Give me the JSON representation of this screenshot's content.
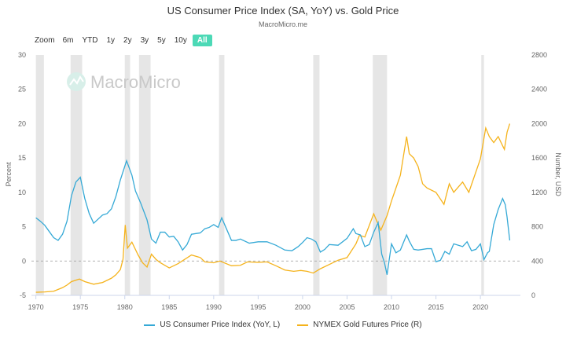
{
  "header": {
    "title": "US Consumer Price Index (SA, YoY) vs. Gold Price",
    "subtitle": "MacroMicro.me"
  },
  "zoom": {
    "label": "Zoom",
    "buttons": [
      "6m",
      "YTD",
      "1y",
      "2y",
      "3y",
      "5y",
      "10y",
      "All"
    ],
    "active": "All"
  },
  "watermark": {
    "text": "MacroMicro"
  },
  "colors": {
    "cpi": "#35a9d6",
    "gold": "#f5b31c",
    "recession": "#e6e6e6",
    "active_button": "#4cd9b6"
  },
  "chart_data": {
    "type": "line",
    "x_range": [
      1969.5,
      2024.5
    ],
    "x_ticks": [
      1970,
      1975,
      1980,
      1985,
      1990,
      1995,
      2000,
      2005,
      2010,
      2015,
      2020
    ],
    "y_left": {
      "label": "Percent",
      "range": [
        -5,
        30
      ],
      "ticks": [
        -5,
        0,
        5,
        10,
        15,
        20,
        25,
        30
      ]
    },
    "y_right": {
      "label": "Number, USD",
      "range": [
        0,
        2800
      ],
      "ticks": [
        0,
        400,
        800,
        1200,
        1600,
        2000,
        2400,
        2800
      ]
    },
    "recessions": [
      [
        1970.0,
        1970.9
      ],
      [
        1973.9,
        1975.2
      ],
      [
        1980.0,
        1980.6
      ],
      [
        1981.6,
        1982.9
      ],
      [
        1990.6,
        1991.2
      ],
      [
        2001.2,
        2001.9
      ],
      [
        2007.9,
        2009.5
      ],
      [
        2020.1,
        2020.4
      ]
    ],
    "zero_line": 0,
    "series": [
      {
        "name": "US Consumer Price Index (YoY, L)",
        "axis": "left",
        "x": [
          1970.0,
          1970.5,
          1971.0,
          1971.5,
          1972.0,
          1972.5,
          1973.0,
          1973.5,
          1974.0,
          1974.5,
          1975.0,
          1975.5,
          1976.0,
          1976.5,
          1977.0,
          1977.5,
          1978.0,
          1978.5,
          1979.0,
          1979.5,
          1980.2,
          1980.8,
          1981.2,
          1981.8,
          1982.5,
          1983.0,
          1983.5,
          1984.0,
          1984.5,
          1985.0,
          1985.5,
          1986.0,
          1986.5,
          1987.0,
          1987.5,
          1988.0,
          1988.5,
          1989.0,
          1989.5,
          1990.0,
          1990.5,
          1990.9,
          1991.5,
          1992.0,
          1992.5,
          1993.0,
          1994.0,
          1995.0,
          1996.0,
          1997.0,
          1998.0,
          1998.8,
          1999.5,
          2000.0,
          2000.5,
          2001.0,
          2001.5,
          2002.0,
          2002.5,
          2003.0,
          2004.0,
          2005.0,
          2005.7,
          2006.0,
          2006.5,
          2007.0,
          2007.5,
          2008.0,
          2008.5,
          2008.9,
          2009.2,
          2009.5,
          2010.0,
          2010.5,
          2011.0,
          2011.7,
          2012.0,
          2012.5,
          2013.0,
          2014.0,
          2014.5,
          2015.0,
          2015.5,
          2016.0,
          2016.5,
          2017.0,
          2018.0,
          2018.5,
          2019.0,
          2019.5,
          2020.0,
          2020.4,
          2020.8,
          2021.0,
          2021.5,
          2022.0,
          2022.5,
          2022.8,
          2023.0,
          2023.3
        ],
        "values": [
          6.3,
          5.8,
          5.2,
          4.3,
          3.4,
          3.0,
          3.9,
          5.8,
          9.5,
          11.5,
          12.2,
          9.1,
          6.9,
          5.5,
          6.1,
          6.7,
          6.9,
          7.6,
          9.4,
          11.8,
          14.6,
          12.5,
          10.2,
          8.4,
          6.0,
          3.2,
          2.6,
          4.2,
          4.2,
          3.5,
          3.6,
          2.8,
          1.6,
          2.4,
          3.9,
          4.0,
          4.1,
          4.7,
          4.9,
          5.3,
          4.9,
          6.3,
          4.5,
          3.0,
          3.0,
          3.2,
          2.6,
          2.8,
          2.8,
          2.3,
          1.6,
          1.5,
          2.1,
          2.7,
          3.4,
          3.2,
          2.8,
          1.3,
          1.7,
          2.4,
          2.3,
          3.3,
          4.7,
          4.0,
          3.8,
          2.1,
          2.4,
          4.2,
          5.6,
          1.0,
          -0.2,
          -2.0,
          2.5,
          1.2,
          1.6,
          3.8,
          2.9,
          1.7,
          1.6,
          1.8,
          1.8,
          -0.1,
          0.1,
          1.4,
          1.0,
          2.5,
          2.1,
          2.8,
          1.5,
          1.7,
          2.5,
          0.2,
          1.2,
          1.4,
          5.3,
          7.5,
          9.1,
          8.2,
          6.4,
          3.0
        ]
      },
      {
        "name": "NYMEX Gold Futures Price (R)",
        "axis": "right",
        "x": [
          1970.0,
          1971.0,
          1972.0,
          1973.0,
          1973.5,
          1974.0,
          1974.9,
          1975.5,
          1976.5,
          1977.5,
          1978.5,
          1979.0,
          1979.5,
          1979.8,
          1980.05,
          1980.3,
          1980.8,
          1981.5,
          1982.0,
          1982.5,
          1983.0,
          1983.5,
          1984.0,
          1985.0,
          1986.0,
          1987.5,
          1988.5,
          1989.0,
          1990.0,
          1990.7,
          1992.0,
          1993.0,
          1993.8,
          1995.0,
          1996.0,
          1997.0,
          1998.0,
          1999.0,
          1999.8,
          2000.5,
          2001.2,
          2002.0,
          2003.0,
          2004.0,
          2005.0,
          2006.0,
          2006.4,
          2007.0,
          2008.0,
          2008.2,
          2008.8,
          2009.5,
          2010.0,
          2011.0,
          2011.7,
          2012.0,
          2012.5,
          2013.0,
          2013.5,
          2014.0,
          2015.0,
          2015.9,
          2016.5,
          2017.0,
          2018.0,
          2018.7,
          2019.0,
          2019.7,
          2020.0,
          2020.6,
          2021.0,
          2021.5,
          2022.0,
          2022.7,
          2023.0,
          2023.3
        ],
        "values": [
          36,
          40,
          48,
          90,
          120,
          160,
          190,
          160,
          130,
          150,
          200,
          240,
          300,
          420,
          820,
          550,
          620,
          470,
          380,
          330,
          480,
          420,
          380,
          320,
          370,
          470,
          440,
          390,
          380,
          400,
          345,
          350,
          390,
          385,
          390,
          345,
          295,
          280,
          290,
          280,
          260,
          310,
          360,
          410,
          440,
          600,
          700,
          680,
          950,
          900,
          760,
          930,
          1100,
          1400,
          1850,
          1650,
          1600,
          1500,
          1300,
          1250,
          1200,
          1060,
          1300,
          1200,
          1320,
          1200,
          1290,
          1500,
          1590,
          1950,
          1850,
          1780,
          1850,
          1700,
          1900,
          2000
        ]
      }
    ]
  },
  "legend": {
    "cpi_label": "US Consumer Price Index (YoY, L)",
    "gold_label": "NYMEX Gold Futures Price (R)"
  }
}
